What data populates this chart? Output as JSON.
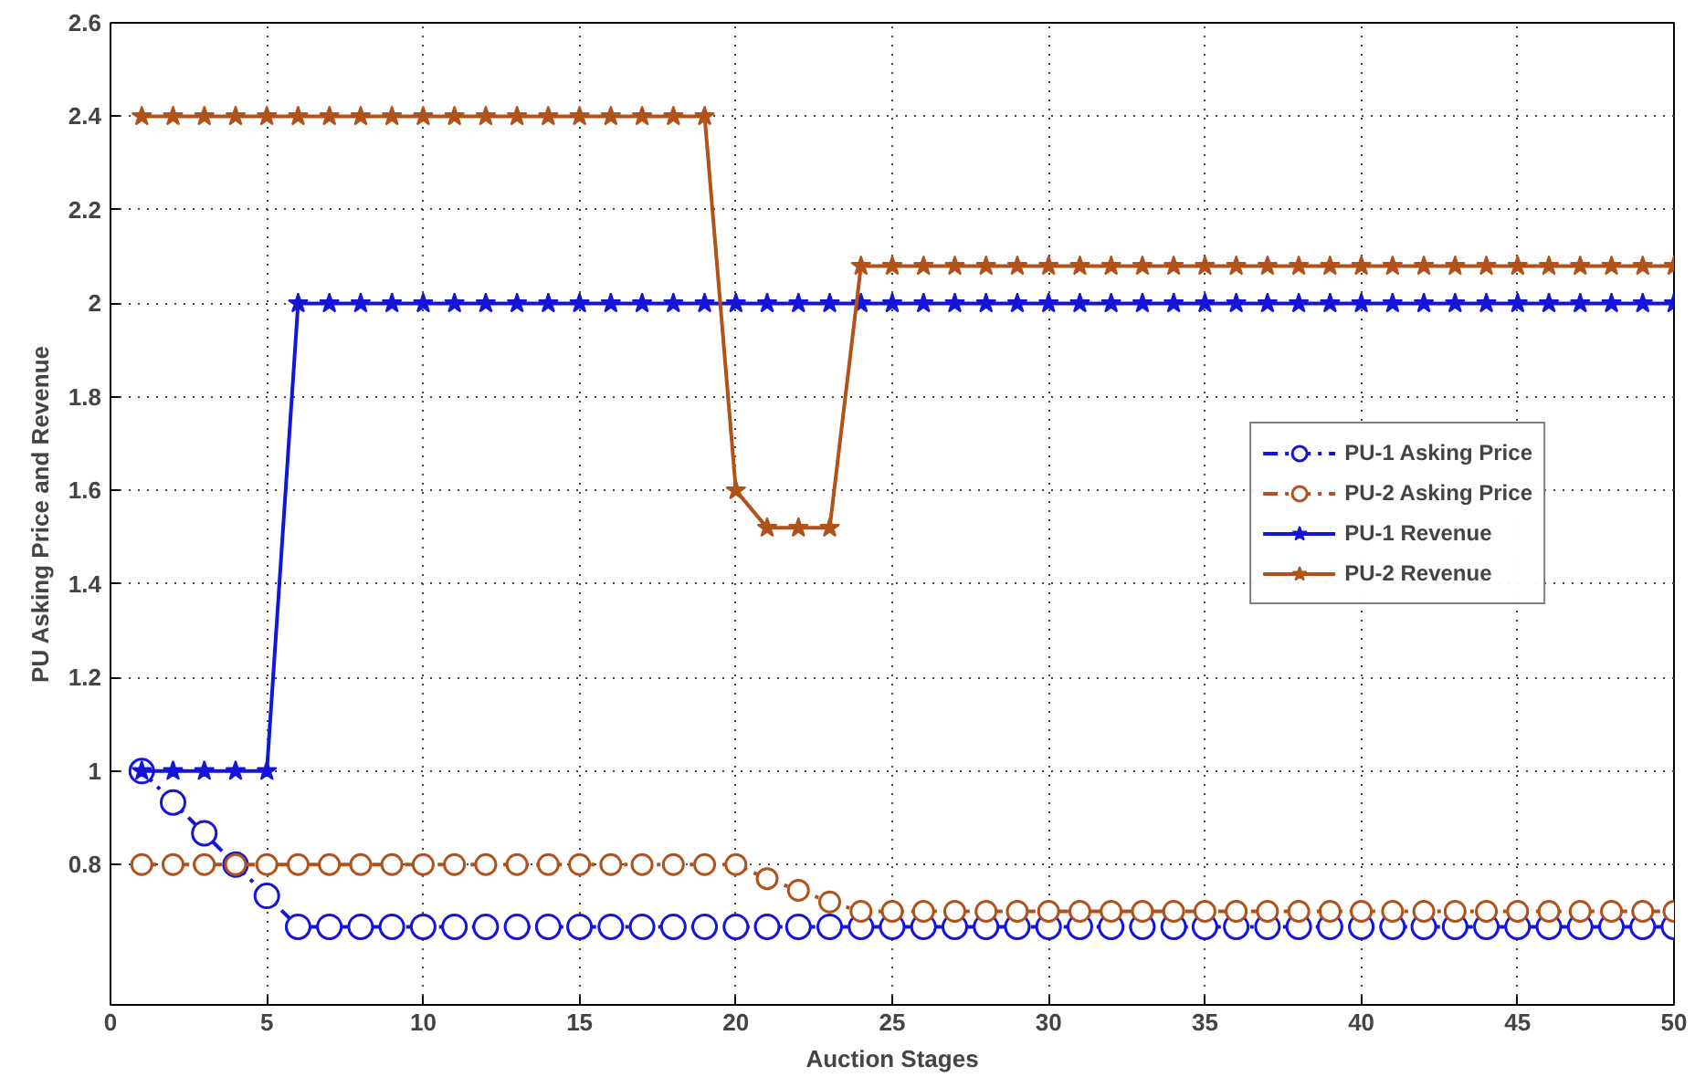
{
  "chart_data": {
    "type": "line",
    "xlabel": "Auction Stages",
    "ylabel": "PU Asking Price and Revenue",
    "x": [
      1,
      2,
      3,
      4,
      5,
      6,
      7,
      8,
      9,
      10,
      11,
      12,
      13,
      14,
      15,
      16,
      17,
      18,
      19,
      20,
      21,
      22,
      23,
      24,
      25,
      26,
      27,
      28,
      29,
      30,
      31,
      32,
      33,
      34,
      35,
      36,
      37,
      38,
      39,
      40,
      41,
      42,
      43,
      44,
      45,
      46,
      47,
      48,
      49,
      50
    ],
    "series": [
      {
        "name": "PU-1 Asking Price",
        "color": "#1515d8",
        "marker": "circle",
        "line_style": "dashdot",
        "values": [
          1,
          0.933,
          0.867,
          0.8,
          0.733,
          0.667,
          0.667,
          0.667,
          0.667,
          0.667,
          0.667,
          0.667,
          0.667,
          0.667,
          0.667,
          0.667,
          0.667,
          0.667,
          0.667,
          0.667,
          0.667,
          0.667,
          0.667,
          0.667,
          0.667,
          0.667,
          0.667,
          0.667,
          0.667,
          0.667,
          0.667,
          0.667,
          0.667,
          0.667,
          0.667,
          0.667,
          0.667,
          0.667,
          0.667,
          0.667,
          0.667,
          0.667,
          0.667,
          0.667,
          0.667,
          0.667,
          0.667,
          0.667,
          0.667,
          0.667
        ]
      },
      {
        "name": "PU-2 Asking Price",
        "color": "#b0521a",
        "marker": "circle",
        "line_style": "dashdot",
        "values": [
          0.8,
          0.8,
          0.8,
          0.8,
          0.8,
          0.8,
          0.8,
          0.8,
          0.8,
          0.8,
          0.8,
          0.8,
          0.8,
          0.8,
          0.8,
          0.8,
          0.8,
          0.8,
          0.8,
          0.8,
          0.77,
          0.745,
          0.72,
          0.7,
          0.7,
          0.7,
          0.7,
          0.7,
          0.7,
          0.7,
          0.7,
          0.7,
          0.7,
          0.7,
          0.7,
          0.7,
          0.7,
          0.7,
          0.7,
          0.7,
          0.7,
          0.7,
          0.7,
          0.7,
          0.7,
          0.7,
          0.7,
          0.7,
          0.7,
          0.7
        ]
      },
      {
        "name": "PU-1 Revenue",
        "color": "#1515d8",
        "marker": "star",
        "line_style": "solid",
        "values": [
          1,
          1,
          1,
          1,
          1,
          2,
          2,
          2,
          2,
          2,
          2,
          2,
          2,
          2,
          2,
          2,
          2,
          2,
          2,
          2,
          2,
          2,
          2,
          2,
          2,
          2,
          2,
          2,
          2,
          2,
          2,
          2,
          2,
          2,
          2,
          2,
          2,
          2,
          2,
          2,
          2,
          2,
          2,
          2,
          2,
          2,
          2,
          2,
          2,
          2
        ]
      },
      {
        "name": "PU-2 Revenue",
        "color": "#b0521a",
        "marker": "star",
        "line_style": "solid",
        "values": [
          2.4,
          2.4,
          2.4,
          2.4,
          2.4,
          2.4,
          2.4,
          2.4,
          2.4,
          2.4,
          2.4,
          2.4,
          2.4,
          2.4,
          2.4,
          2.4,
          2.4,
          2.4,
          2.4,
          1.6,
          1.52,
          1.52,
          1.52,
          2.08,
          2.08,
          2.08,
          2.08,
          2.08,
          2.08,
          2.08,
          2.08,
          2.08,
          2.08,
          2.08,
          2.08,
          2.08,
          2.08,
          2.08,
          2.08,
          2.08,
          2.08,
          2.08,
          2.08,
          2.08,
          2.08,
          2.08,
          2.08,
          2.08,
          2.08,
          2.08
        ]
      }
    ],
    "xlim": [
      0,
      50
    ],
    "xticks": [
      0,
      5,
      10,
      15,
      20,
      25,
      30,
      35,
      40,
      45,
      50
    ],
    "ylim": [
      0.5,
      2.6
    ],
    "yticks": [
      0.8,
      1,
      1.2,
      1.4,
      1.6,
      1.8,
      2,
      2.2,
      2.4,
      2.6
    ],
    "grid": true,
    "legend": "right"
  }
}
